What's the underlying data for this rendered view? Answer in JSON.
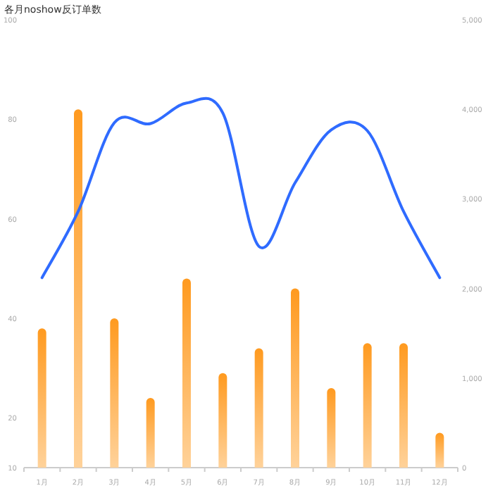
{
  "chart_data": {
    "type": "bar",
    "title": "各月noshow反订单数",
    "categories": [
      "1月",
      "2月",
      "3月",
      "4月",
      "5月",
      "6月",
      "7月",
      "8月",
      "9月",
      "10月",
      "11月",
      "12月"
    ],
    "series": [
      {
        "color": "#ff9a1f",
        "values": [
          38,
          82,
          40,
          24,
          48,
          29,
          34,
          46,
          26,
          35,
          35,
          17
        ]
      },
      {
        "type": "line",
        "axis": "y2",
        "color": "#2f6bff",
        "values": [
          2120,
          2860,
          3850,
          3840,
          4070,
          3960,
          2470,
          3180,
          3770,
          3760,
          2860,
          2120
        ]
      }
    ],
    "ylim": [
      10,
      100
    ],
    "yticks": [
      10,
      20,
      40,
      60,
      80,
      100
    ],
    "y2lim": [
      0,
      5000
    ],
    "y2ticks": [
      {
        "value": 0,
        "label": "0"
      },
      {
        "value": 1000,
        "label": "1,000"
      },
      {
        "value": 2000,
        "label": "2,000"
      },
      {
        "value": 3000,
        "label": "3,000"
      },
      {
        "value": 4000,
        "label": "4,000"
      },
      {
        "value": 5000,
        "label": "5,000"
      }
    ]
  }
}
